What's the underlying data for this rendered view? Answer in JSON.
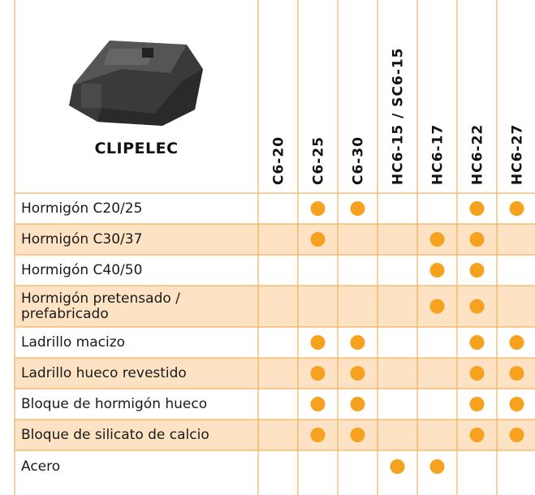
{
  "header": {
    "brand": "CLIPELEC"
  },
  "table": {
    "columns": [
      "C6-20",
      "C6-25",
      "C6-30",
      "HC6-15 / SC6-15",
      "HC6-17",
      "HC6-22",
      "HC6-27"
    ],
    "rows": [
      {
        "label": "Hormigón C20/25",
        "marks": [
          false,
          true,
          true,
          false,
          false,
          true,
          true
        ]
      },
      {
        "label": "Hormigón C30/37",
        "marks": [
          false,
          true,
          false,
          false,
          true,
          true,
          false
        ]
      },
      {
        "label": "Hormigón C40/50",
        "marks": [
          false,
          false,
          false,
          false,
          true,
          true,
          false
        ]
      },
      {
        "label": "Hormigón pretensado / prefabricado",
        "marks": [
          false,
          false,
          false,
          false,
          true,
          true,
          false
        ]
      },
      {
        "label": "Ladrillo macizo",
        "marks": [
          false,
          true,
          true,
          false,
          false,
          true,
          true
        ]
      },
      {
        "label": "Ladrillo hueco revestido",
        "marks": [
          false,
          true,
          true,
          false,
          false,
          true,
          true
        ]
      },
      {
        "label": "Bloque de hormigón hueco",
        "marks": [
          false,
          true,
          true,
          false,
          false,
          true,
          true
        ]
      },
      {
        "label": "Bloque de silicato de calcio",
        "marks": [
          false,
          true,
          true,
          false,
          false,
          true,
          true
        ]
      },
      {
        "label": "Acero",
        "marks": [
          false,
          false,
          false,
          true,
          true,
          false,
          false
        ]
      }
    ]
  }
}
